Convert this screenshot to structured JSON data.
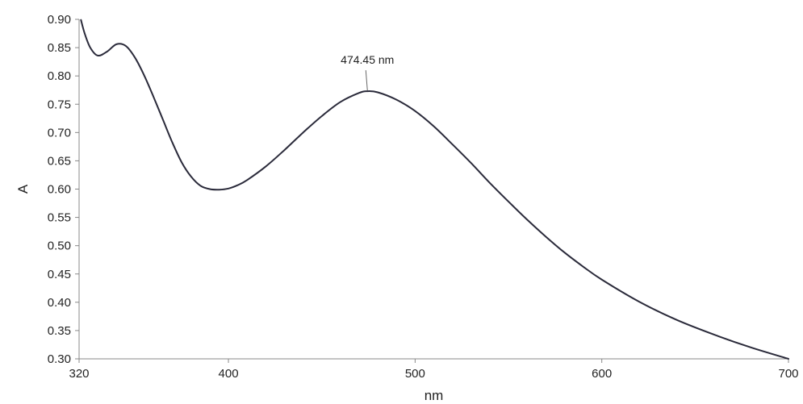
{
  "chart_data": {
    "type": "line",
    "title": "",
    "xlabel": "nm",
    "ylabel": "A",
    "xlim": [
      320,
      700
    ],
    "ylim": [
      0.3,
      0.9
    ],
    "x_ticks": [
      320,
      400,
      500,
      600,
      700
    ],
    "x_tick_labels": [
      "320",
      "400",
      "500",
      "600",
      "700"
    ],
    "y_ticks": [
      0.3,
      0.35,
      0.4,
      0.45,
      0.5,
      0.55,
      0.6,
      0.65,
      0.7,
      0.75,
      0.8,
      0.85,
      0.9
    ],
    "y_tick_labels": [
      "0.30",
      "0.35",
      "0.40",
      "0.45",
      "0.50",
      "0.55",
      "0.60",
      "0.65",
      "0.70",
      "0.75",
      "0.80",
      "0.85",
      "0.90"
    ],
    "grid": false,
    "legend": "none",
    "series": [
      {
        "color": "#2a2a3a",
        "x": [
          321,
          323,
          326,
          330,
          335,
          340,
          345,
          350,
          355,
          360,
          365,
          370,
          375,
          380,
          385,
          390,
          395,
          400,
          405,
          410,
          420,
          430,
          440,
          450,
          460,
          470,
          474.45,
          480,
          490,
          500,
          510,
          520,
          530,
          540,
          550,
          560,
          570,
          580,
          590,
          600,
          620,
          640,
          660,
          680,
          700
        ],
        "y": [
          0.899,
          0.875,
          0.85,
          0.836,
          0.843,
          0.856,
          0.853,
          0.832,
          0.8,
          0.762,
          0.722,
          0.682,
          0.647,
          0.622,
          0.606,
          0.6,
          0.599,
          0.601,
          0.607,
          0.616,
          0.64,
          0.669,
          0.7,
          0.729,
          0.754,
          0.77,
          0.773,
          0.771,
          0.758,
          0.738,
          0.711,
          0.679,
          0.646,
          0.611,
          0.578,
          0.546,
          0.516,
          0.488,
          0.463,
          0.44,
          0.401,
          0.369,
          0.343,
          0.32,
          0.3
        ]
      }
    ],
    "annotations": [
      {
        "text": "474.45 nm",
        "x": 474.45,
        "y": 0.773
      }
    ]
  }
}
